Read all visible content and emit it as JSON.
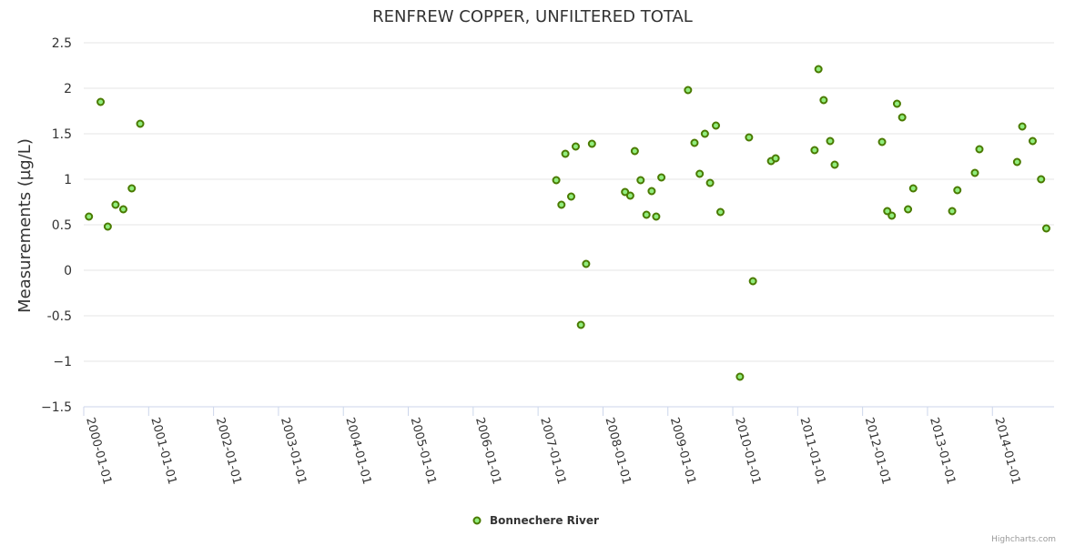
{
  "chart_data": {
    "type": "scatter",
    "title": "RENFREW COPPER, UNFILTERED TOTAL",
    "xlabel": "",
    "ylabel": "Measurements (µg/L)",
    "ylim": [
      -1.5,
      2.5
    ],
    "yticks": [
      "2.5",
      "2",
      "1.5",
      "1",
      "0.5",
      "0",
      "-0.5",
      "−1",
      "−1.5"
    ],
    "ytick_values": [
      2.5,
      2,
      1.5,
      1,
      0.5,
      0,
      -0.5,
      -1,
      -1.5
    ],
    "xlim": [
      2000.0,
      2014.95
    ],
    "xticks": [
      "2000-01-01",
      "2001-01-01",
      "2002-01-01",
      "2003-01-01",
      "2004-01-01",
      "2005-01-01",
      "2006-01-01",
      "2007-01-01",
      "2008-01-01",
      "2009-01-01",
      "2010-01-01",
      "2011-01-01",
      "2012-01-01",
      "2013-01-01",
      "2014-01-01"
    ],
    "xtick_values": [
      2000,
      2001,
      2002,
      2003,
      2004,
      2005,
      2006,
      2007,
      2008,
      2009,
      2010,
      2011,
      2012,
      2013,
      2014
    ],
    "grid": true,
    "legend": "bottom-center",
    "series": [
      {
        "name": "Bonnechere River",
        "color": "#90ed7d",
        "stroke": "#4a7a00",
        "x": [
          2000.08,
          2000.26,
          2000.37,
          2000.49,
          2000.61,
          2000.74,
          2000.87,
          2007.28,
          2007.36,
          2007.42,
          2007.51,
          2007.58,
          2007.66,
          2007.74,
          2007.83,
          2008.34,
          2008.42,
          2008.49,
          2008.58,
          2008.67,
          2008.75,
          2008.82,
          2008.9,
          2009.31,
          2009.41,
          2009.49,
          2009.57,
          2009.65,
          2009.74,
          2009.81,
          2010.11,
          2010.25,
          2010.31,
          2010.59,
          2010.66,
          2011.26,
          2011.32,
          2011.4,
          2011.5,
          2011.57,
          2012.3,
          2012.38,
          2012.45,
          2012.53,
          2012.61,
          2012.7,
          2012.78,
          2013.38,
          2013.46,
          2013.73,
          2013.8,
          2014.38,
          2014.46,
          2014.62,
          2014.75,
          2014.83
        ],
        "y": [
          0.59,
          1.85,
          0.48,
          0.72,
          0.67,
          0.9,
          1.61,
          0.99,
          0.72,
          1.28,
          0.81,
          1.36,
          -0.6,
          0.07,
          1.39,
          0.86,
          0.82,
          1.31,
          0.99,
          0.61,
          0.87,
          0.59,
          1.02,
          1.98,
          1.4,
          1.06,
          1.5,
          0.96,
          1.59,
          0.64,
          -1.17,
          1.46,
          -0.12,
          1.2,
          1.23,
          1.32,
          2.21,
          1.87,
          1.42,
          1.16,
          1.41,
          0.65,
          0.6,
          1.83,
          1.68,
          0.67,
          0.9,
          0.65,
          0.88,
          1.07,
          1.33,
          1.19,
          1.58,
          1.42,
          1.0,
          0.46
        ]
      }
    ]
  },
  "credits": "Highcharts.com"
}
